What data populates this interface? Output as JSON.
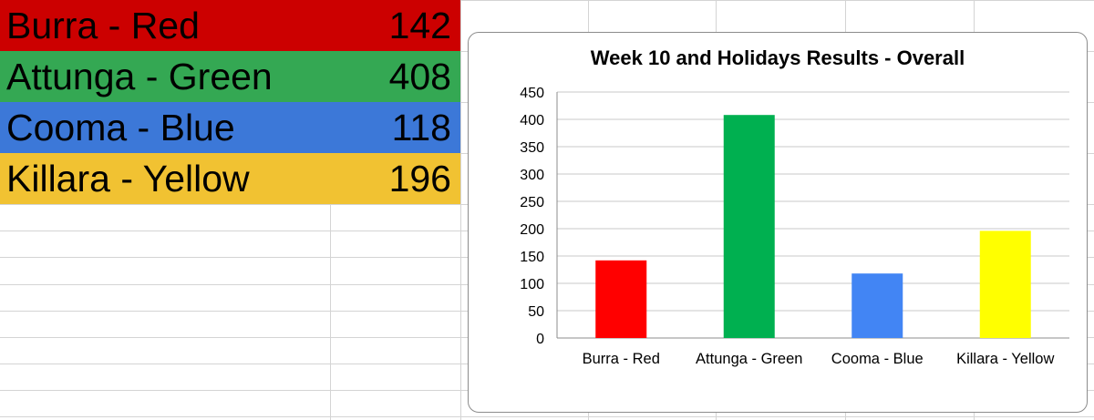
{
  "table": {
    "rows": [
      {
        "label": "Burra - Red",
        "value": "142",
        "color": "#cc0000"
      },
      {
        "label": "Attunga - Green",
        "value": "408",
        "color": "#34a853"
      },
      {
        "label": "Cooma - Blue",
        "value": "118",
        "color": "#3c78d8"
      },
      {
        "label": "Killara - Yellow",
        "value": "196",
        "color": "#f1c232"
      }
    ]
  },
  "chart_data": {
    "type": "bar",
    "title": "Week 10 and Holidays Results - Overall",
    "categories": [
      "Burra - Red",
      "Attunga - Green",
      "Cooma - Blue",
      "Killara - Yellow"
    ],
    "values": [
      142,
      408,
      118,
      196
    ],
    "bar_colors": [
      "#ff0000",
      "#00b050",
      "#4285f4",
      "#ffff00"
    ],
    "ylim": [
      0,
      450
    ],
    "yticks": [
      0,
      50,
      100,
      150,
      200,
      250,
      300,
      350,
      400,
      450
    ],
    "grid": true,
    "legend": "none",
    "xlabel": "",
    "ylabel": ""
  }
}
